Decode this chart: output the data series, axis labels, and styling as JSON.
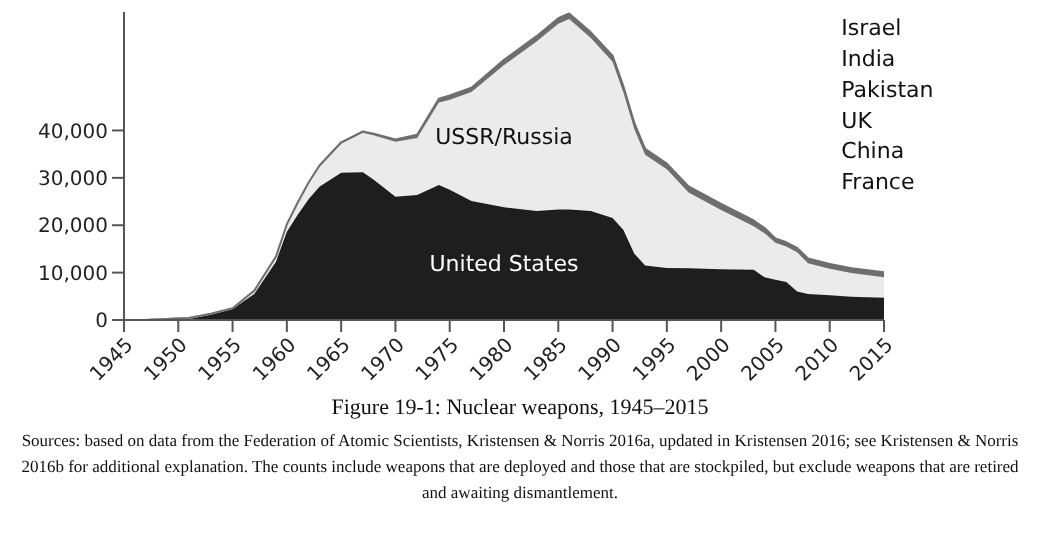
{
  "chart_data": {
    "type": "area",
    "stacked": true,
    "title": "Figure 19-1: Nuclear weapons, 1945–2015",
    "annotations": [
      "Israel",
      "India",
      "Pakistan",
      "UK",
      "China",
      "France",
      "Sources: based on data from the Federation of Atomic Scientists, Kristensen & Norris 2016a, updated in Kristensen 2016; see Kristensen & Norris 2016b for additional explanation. The counts include weapons that are deployed and those that are stockpiled, but exclude weapons that are retired and awaiting dismantlement."
    ],
    "x": [
      1945,
      1947,
      1949,
      1951,
      1953,
      1955,
      1957,
      1959,
      1960,
      1961,
      1962,
      1963,
      1965,
      1967,
      1968,
      1970,
      1972,
      1974,
      1975,
      1977,
      1980,
      1983,
      1985,
      1986,
      1988,
      1990,
      1991,
      1992,
      1993,
      1995,
      1997,
      2000,
      2003,
      2004,
      2005,
      2006,
      2007,
      2008,
      2010,
      2012,
      2015
    ],
    "xlim": [
      1945,
      2015
    ],
    "xticks": [
      1945,
      1950,
      1955,
      1960,
      1965,
      1970,
      1975,
      1980,
      1985,
      1990,
      1995,
      2000,
      2005,
      2010,
      2015
    ],
    "ylim": [
      0,
      65000
    ],
    "yticks": [
      {
        "value": 0,
        "label": "0"
      },
      {
        "value": 10000,
        "label": "10,000"
      },
      {
        "value": 20000,
        "label": "20,000"
      },
      {
        "value": 30000,
        "label": "30,000"
      },
      {
        "value": 40000,
        "label": "40,000"
      }
    ],
    "series": [
      {
        "name": "United States",
        "color": "#1e1e1e",
        "values": [
          0,
          0,
          200,
          400,
          1200,
          2300,
          5500,
          12300,
          18600,
          22200,
          25500,
          28100,
          31100,
          31200,
          29600,
          26000,
          26400,
          28500,
          27500,
          25100,
          23800,
          23000,
          23300,
          23300,
          23000,
          21500,
          19000,
          14000,
          11500,
          11000,
          10900,
          10700,
          10600,
          9000,
          8500,
          8000,
          6000,
          5500,
          5200,
          4900,
          4700
        ]
      },
      {
        "name": "USSR/Russia",
        "color": "#ebebeb",
        "values": [
          0,
          0,
          0,
          0,
          100,
          200,
          700,
          1100,
          1600,
          2500,
          3300,
          4200,
          6100,
          8300,
          9400,
          11600,
          12000,
          17400,
          19000,
          23000,
          30000,
          35800,
          39200,
          40200,
          36500,
          33000,
          29000,
          26300,
          23400,
          20800,
          16000,
          12500,
          9200,
          9300,
          7800,
          7500,
          8300,
          6500,
          5600,
          5000,
          4300
        ]
      },
      {
        "color": "#6e6e6e",
        "values": [
          0,
          0,
          0,
          0,
          0,
          0,
          0,
          0,
          0,
          100,
          200,
          300,
          300,
          300,
          300,
          500,
          700,
          800,
          900,
          900,
          1100,
          1100,
          1200,
          1200,
          1200,
          1300,
          1300,
          1300,
          1200,
          1200,
          1300,
          1300,
          1200,
          1100,
          900,
          900,
          900,
          1000,
          1000,
          1000,
          1100
        ]
      }
    ]
  }
}
